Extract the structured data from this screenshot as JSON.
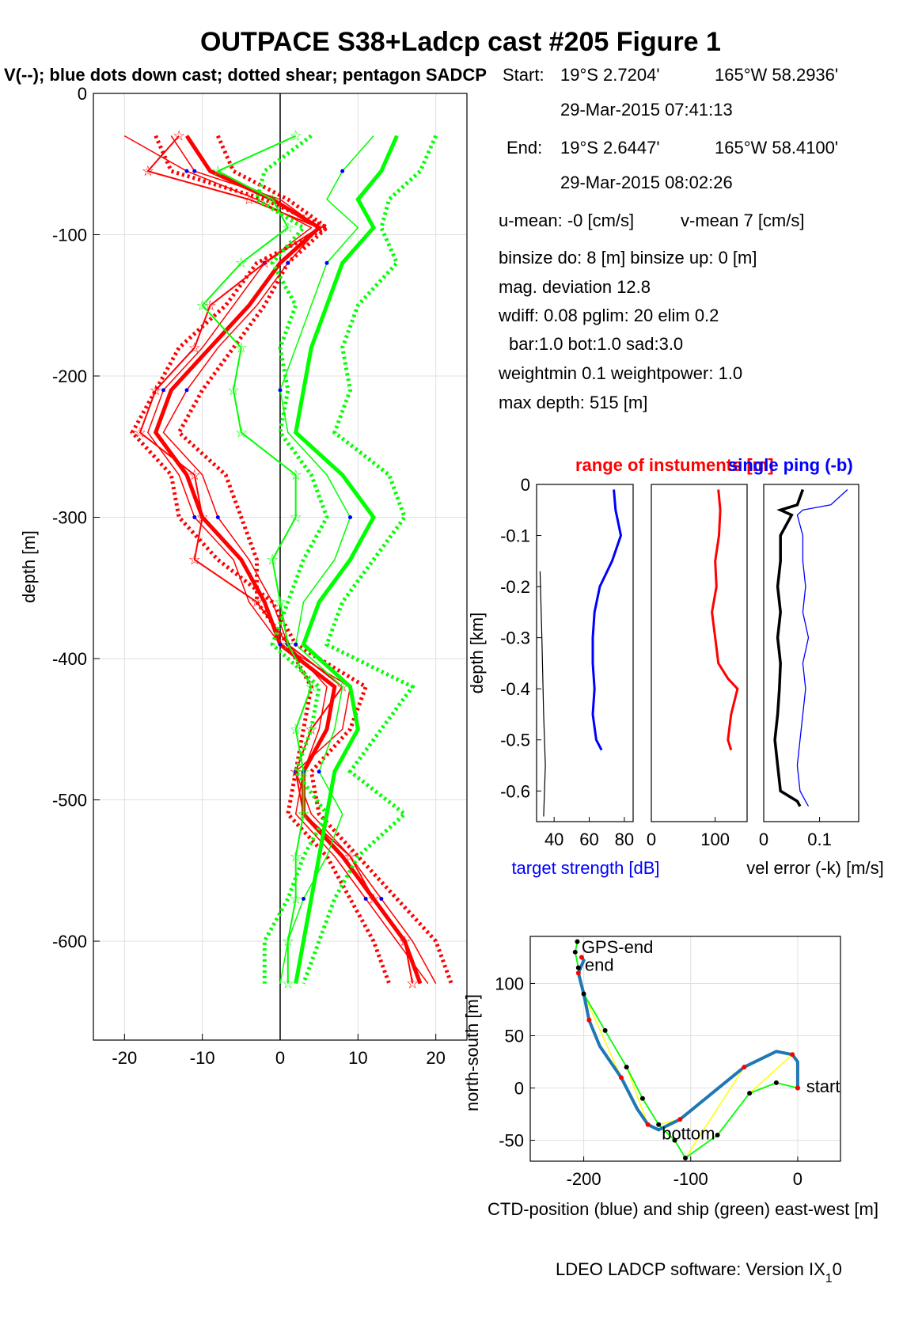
{
  "title": "OUTPACE S38+Ladcp cast #205  Figure 1",
  "subtitle": "V(--); blue dots down cast; dotted shear; pentagon SADCP",
  "info": {
    "start_label": "Start:",
    "start_lat": "19°S  2.7204'",
    "start_lon": "165°W 58.2936'",
    "start_time": "29-Mar-2015 07:41:13",
    "end_label": "End:",
    "end_lat": "19°S  2.6447'",
    "end_lon": "165°W 58.4100'",
    "end_time": "29-Mar-2015 08:02:26",
    "u_mean": "u-mean:  -0 [cm/s]",
    "v_mean": "v-mean   7 [cm/s]",
    "binsize": "binsize do: 8 [m]  binsize up:  0 [m]",
    "mag": "mag. deviation 12.8",
    "wdiff": "wdiff: 0.08  pglim: 20  elim 0.2",
    "bar": "bar:1.0 bot:1.0 sad:3.0",
    "weight": "weightmin 0.1  weightpower: 1.0",
    "maxdepth": "max depth: 515 [m]"
  },
  "software": {
    "text": "LDEO LADCP software: Version IX",
    "sub": "1",
    "tail": "0"
  },
  "colors": {
    "red": "#ff0000",
    "green": "#00ff00",
    "blue": "#0000ff",
    "ctd": "#1f77b4",
    "yellow": "#ffff00",
    "grid": "#e0e0e0"
  },
  "chart_data": [
    {
      "id": "velocity",
      "type": "line",
      "ylabel": "depth [m]",
      "xlim": [
        -24,
        24
      ],
      "ylim": [
        -670,
        0
      ],
      "xticks": [
        "-20",
        "-10",
        "0",
        "10",
        "20"
      ],
      "yticks": [
        "0",
        "-100",
        "-200",
        "-300",
        "-400",
        "-500",
        "-600"
      ],
      "xtick_values": [
        -20,
        -10,
        0,
        10,
        20
      ],
      "ytick_values": [
        0,
        -100,
        -200,
        -300,
        -400,
        -500,
        -600
      ],
      "grid": true,
      "depth": [
        -30,
        -55,
        -75,
        -95,
        -120,
        -150,
        -180,
        -210,
        -240,
        -270,
        -300,
        -330,
        -360,
        -390,
        -420,
        -450,
        -480,
        -510,
        -540,
        -570,
        -600,
        -630
      ],
      "series": [
        {
          "color": "red",
          "style": "thick",
          "values": [
            -12,
            -9,
            -1,
            5,
            0,
            -4,
            -9,
            -14,
            -16,
            -12,
            -10,
            -5,
            -2,
            0,
            7,
            6,
            3,
            3,
            8,
            12,
            16,
            18
          ]
        },
        {
          "color": "red",
          "style": "dotted",
          "values": [
            -16,
            -14,
            -2,
            6,
            -3,
            -7,
            -13,
            -16,
            -19,
            -14,
            -13,
            -8,
            -1,
            2,
            11,
            9,
            4,
            5,
            10,
            15,
            20,
            22
          ]
        },
        {
          "color": "red",
          "style": "dotted",
          "values": [
            -8,
            -6,
            1,
            6,
            1,
            -2,
            -6,
            -10,
            -13,
            -7,
            -5,
            -3,
            -3,
            1,
            4,
            3,
            2,
            1,
            6,
            9,
            12,
            14
          ]
        },
        {
          "color": "red",
          "style": "thin",
          "values": [
            -20,
            -12,
            -3,
            4,
            -2,
            -6,
            -10,
            -15,
            -17,
            -13,
            -11,
            -6,
            -4,
            0,
            9,
            8,
            2,
            4,
            9,
            13,
            17,
            20
          ]
        },
        {
          "color": "red",
          "style": "thin",
          "values": [
            -14,
            -11,
            0,
            5,
            1,
            -3,
            -8,
            -12,
            -15,
            -10,
            -8,
            -4,
            -1,
            1,
            6,
            5,
            3,
            2,
            7,
            11,
            15,
            19
          ]
        },
        {
          "color": "red",
          "style": "star",
          "values": [
            -13,
            -17,
            -4,
            5,
            -2,
            -9,
            -11,
            -16,
            -18,
            -11,
            -10,
            -11,
            -3,
            1,
            8,
            4,
            2,
            3,
            9,
            12,
            16,
            17
          ]
        },
        {
          "color": "green",
          "style": "thick",
          "values": [
            15,
            13,
            10,
            12,
            8,
            6,
            4,
            3,
            2,
            8,
            12,
            9,
            5,
            3,
            9,
            10,
            7,
            6,
            5,
            4,
            3,
            2
          ]
        },
        {
          "color": "green",
          "style": "dotted",
          "values": [
            20,
            18,
            14,
            13,
            15,
            10,
            8,
            9,
            7,
            14,
            16,
            12,
            8,
            6,
            17,
            13,
            9,
            16,
            10,
            7,
            5,
            3
          ]
        },
        {
          "color": "green",
          "style": "dotted",
          "values": [
            4,
            -2,
            -3,
            3,
            -1,
            2,
            0,
            1,
            0,
            4,
            6,
            3,
            1,
            -1,
            5,
            4,
            2,
            6,
            3,
            1,
            -2,
            -2
          ]
        },
        {
          "color": "green",
          "style": "thin",
          "values": [
            12,
            8,
            6,
            10,
            6,
            4,
            2,
            0,
            1,
            6,
            9,
            7,
            3,
            2,
            8,
            7,
            5,
            8,
            6,
            3,
            1,
            0
          ]
        },
        {
          "color": "green",
          "style": "star",
          "values": [
            2,
            -8,
            -1,
            1,
            -5,
            -10,
            -5,
            -6,
            -5,
            2,
            2,
            -1,
            0,
            1,
            4,
            2,
            3,
            3,
            2,
            2,
            1,
            1
          ]
        }
      ]
    },
    {
      "id": "target",
      "type": "line",
      "ylabel": "depth [km]",
      "xlabel": "target strength [dB]",
      "ylim": [
        -0.66,
        0
      ],
      "xlim": [
        30,
        85
      ],
      "xticks": [
        "40",
        "60",
        "80"
      ],
      "xtick_values": [
        40,
        60,
        80
      ],
      "yticks": [
        "0",
        "-0.1",
        "-0.2",
        "-0.3",
        "-0.4",
        "-0.5",
        "-0.6"
      ],
      "ytick_values": [
        0,
        -0.1,
        -0.2,
        -0.3,
        -0.4,
        -0.5,
        -0.6
      ],
      "depth": [
        -0.01,
        -0.05,
        -0.1,
        -0.15,
        -0.2,
        -0.25,
        -0.3,
        -0.35,
        -0.4,
        -0.45,
        -0.5,
        -0.52
      ],
      "values": [
        74,
        75,
        78,
        73,
        66,
        63,
        62,
        62,
        63,
        62,
        64,
        67
      ],
      "thin_depth": [
        -0.17,
        -0.3,
        -0.45,
        -0.55,
        -0.65
      ],
      "thin_values": [
        32,
        33,
        34,
        35,
        34
      ]
    },
    {
      "id": "range",
      "type": "line",
      "title": "range of instuments [m]",
      "xlim": [
        0,
        150
      ],
      "ylim": [
        -0.66,
        0
      ],
      "xticks": [
        "0",
        "100"
      ],
      "xtick_values": [
        0,
        100
      ],
      "depth": [
        -0.01,
        -0.05,
        -0.1,
        -0.15,
        -0.2,
        -0.25,
        -0.3,
        -0.35,
        -0.38,
        -0.4,
        -0.45,
        -0.5,
        -0.52
      ],
      "values": [
        105,
        108,
        106,
        100,
        102,
        95,
        100,
        105,
        120,
        135,
        125,
        120,
        125
      ]
    },
    {
      "id": "velerr",
      "type": "line",
      "title": "single ping (-b)",
      "xlabel": "vel error (-k) [m/s]",
      "xlim": [
        0,
        0.17
      ],
      "ylim": [
        -0.66,
        0
      ],
      "xticks": [
        "0",
        "0.1"
      ],
      "xtick_values": [
        0,
        0.1
      ],
      "depth": [
        -0.01,
        -0.04,
        -0.05,
        -0.06,
        -0.08,
        -0.1,
        -0.15,
        -0.2,
        -0.25,
        -0.3,
        -0.35,
        -0.4,
        -0.45,
        -0.5,
        -0.55,
        -0.6,
        -0.62,
        -0.63
      ],
      "black": [
        0.07,
        0.06,
        0.03,
        0.05,
        0.04,
        0.03,
        0.03,
        0.025,
        0.03,
        0.025,
        0.03,
        0.028,
        0.025,
        0.02,
        0.025,
        0.03,
        0.06,
        0.065
      ],
      "blue": [
        0.15,
        0.12,
        0.07,
        0.06,
        0.065,
        0.07,
        0.07,
        0.075,
        0.07,
        0.08,
        0.07,
        0.075,
        0.07,
        0.065,
        0.06,
        0.065,
        0.075,
        0.08
      ]
    },
    {
      "id": "position",
      "type": "line",
      "xlabel": "CTD-position (blue) and ship (green) east-west [m]",
      "ylabel": "north-south [m]",
      "xlim": [
        -250,
        40
      ],
      "ylim": [
        -70,
        145
      ],
      "xticks": [
        "-200",
        "-100",
        "0"
      ],
      "xtick_values": [
        -200,
        -100,
        0
      ],
      "yticks": [
        "100",
        "50",
        "0",
        "-50"
      ],
      "ytick_values": [
        100,
        50,
        0,
        -50
      ],
      "ctd_x": [
        0,
        0,
        -5,
        -20,
        -50,
        -80,
        -110,
        -130,
        -140,
        -150,
        -165,
        -185,
        -195,
        -200,
        -205,
        -200,
        -202
      ],
      "ctd_y": [
        0,
        25,
        32,
        35,
        20,
        -5,
        -30,
        -40,
        -35,
        -20,
        10,
        40,
        65,
        90,
        110,
        122,
        125
      ],
      "ship_x": [
        0,
        -20,
        -45,
        -75,
        -105,
        -115,
        -130,
        -145,
        -160,
        -180,
        -200,
        -205,
        -208,
        -206
      ],
      "ship_y": [
        0,
        5,
        -5,
        -45,
        -67,
        -50,
        -35,
        -10,
        20,
        55,
        90,
        115,
        130,
        140
      ],
      "labels": [
        {
          "text": "GPS-end",
          "x": -205,
          "y": 135
        },
        {
          "text": "end",
          "x": -202,
          "y": 118
        },
        {
          "text": "bottom",
          "x": -130,
          "y": -43
        },
        {
          "text": "start",
          "x": 5,
          "y": 2
        }
      ]
    }
  ]
}
